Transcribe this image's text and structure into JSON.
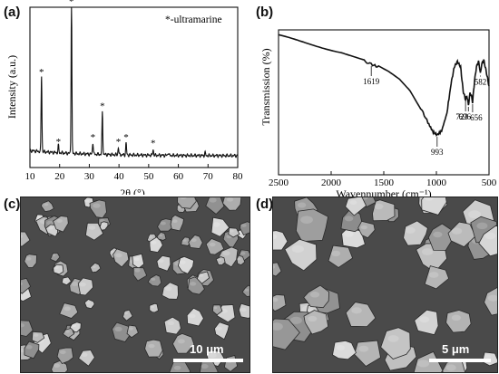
{
  "panels": {
    "a": {
      "label": "(a)"
    },
    "b": {
      "label": "(b)"
    },
    "c": {
      "label": "(c)",
      "scale_bar": "10 μm"
    },
    "d": {
      "label": "(d)",
      "scale_bar": "5 μm"
    }
  },
  "chart_data": [
    {
      "type": "line",
      "panel": "a",
      "xlabel": "2θ (°)",
      "ylabel": "Intensity (a.u.)",
      "xlim": [
        10,
        80
      ],
      "xticks": [
        10,
        20,
        30,
        40,
        50,
        60,
        70,
        80
      ],
      "legend": "*-ultramarine",
      "line_color": "#111111",
      "peaks": [
        {
          "x": 13.9,
          "h": 0.52
        },
        {
          "x": 19.6,
          "h": 0.05
        },
        {
          "x": 24.0,
          "h": 1.0
        },
        {
          "x": 31.2,
          "h": 0.08
        },
        {
          "x": 34.4,
          "h": 0.29
        },
        {
          "x": 39.8,
          "h": 0.05
        },
        {
          "x": 42.4,
          "h": 0.08
        },
        {
          "x": 51.5,
          "h": 0.04
        },
        {
          "x": 56.6,
          "h": 0.02
        },
        {
          "x": 69.0,
          "h": 0.02
        }
      ],
      "starred_peaks": [
        13.9,
        19.6,
        24.0,
        31.2,
        34.4,
        39.8,
        42.4,
        51.5
      ]
    },
    {
      "type": "line",
      "panel": "b",
      "xlabel": "Wavennumber (cm⁻¹)",
      "ylabel": "Transmission (%)",
      "xlim": [
        2500,
        500
      ],
      "xticks": [
        2500,
        2000,
        1500,
        1000,
        500
      ],
      "line_color": "#111111",
      "points": [
        [
          2500,
          0.97
        ],
        [
          2400,
          0.95
        ],
        [
          2300,
          0.93
        ],
        [
          2200,
          0.91
        ],
        [
          2100,
          0.89
        ],
        [
          2000,
          0.87
        ],
        [
          1900,
          0.85
        ],
        [
          1800,
          0.82
        ],
        [
          1700,
          0.79
        ],
        [
          1619,
          0.76
        ],
        [
          1550,
          0.74
        ],
        [
          1450,
          0.7
        ],
        [
          1350,
          0.65
        ],
        [
          1250,
          0.57
        ],
        [
          1150,
          0.44
        ],
        [
          1080,
          0.33
        ],
        [
          1030,
          0.26
        ],
        [
          993,
          0.24
        ],
        [
          950,
          0.27
        ],
        [
          900,
          0.4
        ],
        [
          860,
          0.62
        ],
        [
          830,
          0.74
        ],
        [
          800,
          0.78
        ],
        [
          770,
          0.74
        ],
        [
          745,
          0.56
        ],
        [
          723,
          0.5
        ],
        [
          710,
          0.53
        ],
        [
          696,
          0.46
        ],
        [
          680,
          0.55
        ],
        [
          665,
          0.52
        ],
        [
          656,
          0.48
        ],
        [
          640,
          0.62
        ],
        [
          620,
          0.74
        ],
        [
          600,
          0.78
        ],
        [
          590,
          0.74
        ],
        [
          582,
          0.69
        ],
        [
          570,
          0.76
        ],
        [
          550,
          0.79
        ],
        [
          530,
          0.72
        ],
        [
          510,
          0.64
        ],
        [
          500,
          0.6
        ]
      ],
      "annotations": [
        {
          "label": "1619",
          "x": 1619
        },
        {
          "label": "993",
          "x": 993
        },
        {
          "label": "723",
          "x": 723
        },
        {
          "label": "696",
          "x": 696
        },
        {
          "label": "656",
          "x": 656
        },
        {
          "label": "582",
          "x": 582
        }
      ]
    }
  ]
}
